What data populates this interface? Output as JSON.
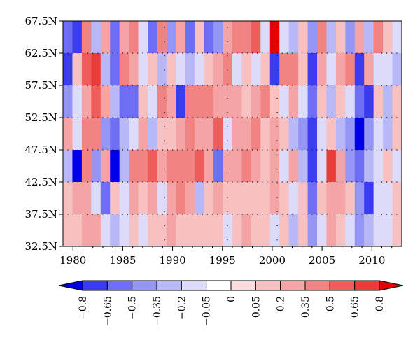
{
  "chart_data": {
    "type": "heatmap",
    "title": "",
    "xlabel": "",
    "ylabel": "",
    "x_range": [
      1979,
      2013
    ],
    "y_range_deg": [
      32.5,
      67.5
    ],
    "x_ticks": [
      "1980",
      "1985",
      "1990",
      "1995",
      "2000",
      "2005",
      "2010"
    ],
    "x_tick_values": [
      1980,
      1985,
      1990,
      1995,
      2000,
      2005,
      2010
    ],
    "y_ticks": [
      "67.5N",
      "62.5N",
      "57.5N",
      "52.5N",
      "47.5N",
      "42.5N",
      "37.5N",
      "32.5N"
    ],
    "y_tick_values": [
      67.5,
      62.5,
      57.5,
      52.5,
      47.5,
      42.5,
      37.5,
      32.5
    ],
    "colorbar": {
      "labels": [
        "−0.8",
        "−0.65",
        "−0.5",
        "−0.35",
        "−0.2",
        "−0.05",
        "0",
        "0.05",
        "0.2",
        "0.35",
        "0.5",
        "0.65",
        "0.8"
      ],
      "colors": [
        "#0000e6",
        "#3c3cef",
        "#6e6ef4",
        "#9595f5",
        "#b8b8f6",
        "#dcdcfa",
        "#ffffff",
        "#fadcdc",
        "#f7c1c1",
        "#f4a4a4",
        "#f28383",
        "#ee5c5c",
        "#eb3c3c",
        "#e60000"
      ]
    },
    "row_labels_lat": [
      65,
      60,
      55,
      50,
      45,
      40,
      35
    ],
    "columns_start_year": 1979,
    "values": [
      [
        -0.5,
        -0.65,
        0.35,
        -0.2,
        0.2,
        -0.5,
        0.2,
        0.35,
        -0.05,
        -0.5,
        0.35,
        -0.35,
        0.2,
        -0.5,
        0.05,
        -0.5,
        -0.35,
        0.2,
        0.35,
        0.35,
        0.5,
        -0.05,
        0.8,
        -0.05,
        -0.2,
        0.05,
        -0.35,
        0.35,
        -0.2,
        0.05,
        -0.35,
        0.2,
        -0.2,
        0.35,
        0.05,
        -0.05
      ],
      [
        -0.65,
        0.05,
        0.5,
        0.65,
        -0.2,
        -0.5,
        0.35,
        0.2,
        -0.05,
        0.05,
        -0.2,
        0.05,
        -0.05,
        -0.2,
        -0.05,
        0.05,
        0.2,
        0.35,
        -0.05,
        0.05,
        -0.05,
        0.05,
        -0.65,
        0.35,
        0.35,
        0.05,
        -0.65,
        0.2,
        -0.05,
        0.2,
        0.35,
        -0.65,
        0.2,
        -0.05,
        -0.05,
        -0.2
      ],
      [
        -0.35,
        -0.05,
        0.2,
        0.5,
        0.2,
        -0.2,
        -0.5,
        -0.5,
        0.05,
        -0.05,
        0.35,
        0.2,
        -0.65,
        0.35,
        0.35,
        0.35,
        0.2,
        0.2,
        0.2,
        0.05,
        0.2,
        0.35,
        0.05,
        -0.05,
        0.2,
        -0.05,
        -0.5,
        0.05,
        -0.2,
        0.05,
        -0.05,
        -0.5,
        -0.65,
        0.05,
        -0.2,
        0.05
      ],
      [
        0.2,
        -0.05,
        0.35,
        0.35,
        -0.35,
        -0.5,
        -0.2,
        -0.05,
        0.2,
        -0.2,
        0.05,
        0.05,
        0.2,
        0.35,
        0.2,
        0.2,
        0.5,
        -0.05,
        0.2,
        0.2,
        0.35,
        0.05,
        0.2,
        0.05,
        -0.2,
        -0.35,
        -0.65,
        -0.05,
        0.05,
        -0.2,
        -0.35,
        -0.8,
        -0.35,
        -0.05,
        -0.2,
        0.05
      ],
      [
        -0.2,
        -0.8,
        0.35,
        -0.35,
        0.2,
        -0.8,
        -0.2,
        0.35,
        0.35,
        0.5,
        0.2,
        0.35,
        0.35,
        0.35,
        0.5,
        0.2,
        -0.5,
        0.2,
        0.2,
        0.35,
        0.2,
        0.05,
        0.2,
        -0.05,
        0.2,
        -0.2,
        -0.65,
        -0.05,
        0.65,
        0.2,
        -0.35,
        -0.5,
        -0.2,
        -0.05,
        0.05,
        -0.05
      ],
      [
        0.05,
        0.2,
        0.2,
        -0.05,
        -0.5,
        0.05,
        -0.05,
        0.2,
        0.05,
        0.2,
        -0.05,
        0.2,
        0.35,
        0.2,
        -0.2,
        0.05,
        0.2,
        0.05,
        0.05,
        0.05,
        0.05,
        0.05,
        0.2,
        0.05,
        -0.05,
        0.05,
        -0.5,
        0.05,
        0.2,
        0.2,
        0.05,
        -0.35,
        -0.65,
        -0.05,
        -0.05,
        0.05
      ],
      [
        0.05,
        0.05,
        0.2,
        0.2,
        -0.05,
        -0.2,
        -0.05,
        0.05,
        -0.05,
        0.05,
        0.05,
        0.2,
        0.05,
        0.05,
        0.05,
        0.05,
        0.05,
        -0.05,
        0.05,
        0.2,
        0.05,
        0.05,
        -0.05,
        0.05,
        -0.2,
        0.05,
        -0.35,
        -0.05,
        0.2,
        0.05,
        -0.05,
        -0.35,
        -0.2,
        -0.05,
        -0.05,
        0.05
      ]
    ]
  }
}
